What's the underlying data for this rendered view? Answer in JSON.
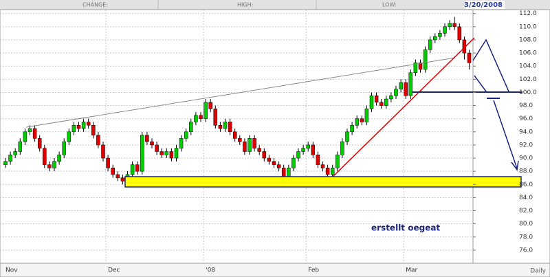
{
  "header": {
    "change": "CHANGE:",
    "high": "HIGH:",
    "low": "LOW:",
    "date": "3/20/2008"
  },
  "footer": {
    "period": "Daily"
  },
  "chart_data": {
    "type": "candlestick",
    "annotations": [
      "erstellt oegeat"
    ],
    "up_color": "#00cc00",
    "down_color": "#e00000",
    "grid": true,
    "categories": [
      "Nov",
      null,
      null,
      null,
      null,
      null,
      null,
      null,
      null,
      null,
      null,
      null,
      null,
      null,
      null,
      null,
      null,
      null,
      null,
      null,
      null,
      "Dec",
      null,
      null,
      null,
      null,
      null,
      null,
      null,
      null,
      null,
      null,
      null,
      null,
      null,
      null,
      null,
      null,
      null,
      null,
      null,
      "'08",
      null,
      null,
      null,
      null,
      null,
      null,
      null,
      null,
      null,
      null,
      null,
      null,
      null,
      null,
      null,
      null,
      null,
      null,
      null,
      null,
      "Feb",
      null,
      null,
      null,
      null,
      null,
      null,
      null,
      null,
      null,
      null,
      null,
      null,
      null,
      null,
      null,
      null,
      null,
      null,
      null,
      "Mar",
      null,
      null,
      null,
      null,
      null,
      null,
      null,
      null,
      null,
      null,
      null,
      null,
      null
    ],
    "open": [
      89,
      89.5,
      90.5,
      91,
      92.5,
      94,
      94.5,
      93,
      91.5,
      89,
      88.5,
      89.5,
      90.5,
      92.5,
      94,
      95,
      94.5,
      95.5,
      95,
      93.5,
      92,
      90,
      88.5,
      87.5,
      87,
      86.5,
      87.5,
      89,
      88,
      93.5,
      92.5,
      92,
      91,
      90.5,
      91,
      90,
      91.5,
      93,
      94,
      95.5,
      96.5,
      96,
      98.5,
      97.5,
      95,
      94.5,
      95.5,
      94,
      93,
      92.5,
      91,
      93,
      91.5,
      91,
      90,
      89.5,
      89,
      88.5,
      86.5,
      88.5,
      90,
      91,
      91.5,
      92,
      90.5,
      89,
      88.5,
      87.5,
      88.5,
      90.5,
      92.5,
      94,
      95,
      96,
      95.5,
      97.5,
      99.5,
      98.5,
      98,
      99,
      99.5,
      100.5,
      101.5,
      99.5,
      103,
      104.5,
      103.5,
      106.5,
      108,
      108.5,
      109,
      110,
      110.5,
      110,
      108,
      106
    ],
    "high": [
      90,
      91,
      91.5,
      93,
      94.5,
      95,
      95,
      93.5,
      92,
      89.5,
      90,
      91,
      93,
      94.5,
      95.5,
      95.5,
      96,
      96,
      95.5,
      94,
      92.5,
      90.5,
      89,
      88,
      87.5,
      88,
      89.5,
      89.5,
      94,
      94,
      93,
      92.5,
      91.5,
      91.5,
      91.5,
      92,
      93.5,
      94.5,
      96,
      97,
      97,
      99,
      99,
      98,
      95.5,
      96,
      96,
      94.5,
      93.5,
      93,
      93.5,
      93.5,
      92,
      91.5,
      90.5,
      90,
      89.5,
      89,
      89,
      90.5,
      91.5,
      92,
      92.5,
      92.5,
      91,
      89.5,
      89,
      89,
      91,
      93,
      94.5,
      95.5,
      96.5,
      96.5,
      98,
      100,
      100,
      99,
      99.5,
      100,
      101,
      102,
      102,
      103.5,
      105,
      105,
      107,
      108.5,
      109,
      109.5,
      110.5,
      111,
      111.5,
      110.5,
      108.5,
      106.5
    ],
    "low": [
      88.5,
      89,
      90,
      90.5,
      92,
      93.5,
      92.5,
      91,
      88.5,
      88,
      88,
      89,
      90,
      92,
      93.5,
      94,
      94,
      94.5,
      93,
      91.5,
      89.5,
      88,
      87,
      86.5,
      86,
      86,
      87,
      87.5,
      87.5,
      92,
      91.5,
      90.5,
      90,
      90,
      89.5,
      89.5,
      91,
      92.5,
      93.5,
      95,
      95.5,
      95.5,
      97,
      94.5,
      94,
      94,
      93.5,
      92.5,
      92,
      90.5,
      90.5,
      91,
      90.5,
      89.5,
      89,
      88.5,
      88,
      86,
      86,
      88,
      89.5,
      90.5,
      91,
      90,
      88.5,
      88,
      87,
      87,
      88,
      90,
      92,
      93.5,
      94.5,
      95,
      95,
      97,
      98,
      97.5,
      97.5,
      98.5,
      99,
      100,
      99,
      99,
      102.5,
      103,
      103,
      106,
      107.5,
      108,
      108.5,
      109.5,
      109.5,
      107.5,
      105,
      103.5
    ],
    "close": [
      89.5,
      90.5,
      91,
      92.5,
      94,
      94.5,
      93,
      91.5,
      89,
      88.5,
      89.5,
      90.5,
      92.5,
      94,
      95,
      94.5,
      95.5,
      95,
      93.5,
      92,
      90,
      88.5,
      87.5,
      87,
      86.5,
      87.5,
      89,
      88,
      93.5,
      92.5,
      92,
      91,
      90.5,
      91,
      90,
      91.5,
      93,
      94,
      95.5,
      96.5,
      96,
      98.5,
      97.5,
      95,
      94.5,
      95.5,
      94,
      93,
      92.5,
      91,
      93,
      91.5,
      91,
      90,
      89.5,
      89,
      88.5,
      86.5,
      88.5,
      90,
      91,
      91.5,
      92,
      90.5,
      89,
      88.5,
      87.5,
      88.5,
      90.5,
      92.5,
      94,
      95,
      96,
      95.5,
      97.5,
      99.5,
      98.5,
      98,
      99,
      99.5,
      100.5,
      101.5,
      99.5,
      103,
      104.5,
      103.5,
      106.5,
      108,
      108.5,
      109,
      110,
      110.5,
      110,
      108,
      106,
      104.5
    ],
    "ylim": [
      74,
      112.6
    ],
    "yticks": [
      {
        "value": 112,
        "label": "112.0"
      },
      {
        "value": 110,
        "label": "110.0"
      },
      {
        "value": 108,
        "label": "108.0"
      },
      {
        "value": 106,
        "label": "106.0"
      },
      {
        "value": 104,
        "label": "104.0"
      },
      {
        "value": 102,
        "label": "102.0"
      },
      {
        "value": 100,
        "label": "100.0"
      },
      {
        "value": 98,
        "label": "98.0"
      },
      {
        "value": 96,
        "label": "96.0"
      },
      {
        "value": 94,
        "label": "94.0"
      },
      {
        "value": 92,
        "label": "92.0"
      },
      {
        "value": 90,
        "label": "90.0"
      },
      {
        "value": 88,
        "label": "88.0"
      },
      {
        "value": 86,
        "label": "86.0"
      },
      {
        "value": 84,
        "label": "84.0"
      },
      {
        "value": 82,
        "label": "82.0"
      },
      {
        "value": 80,
        "label": "80.0"
      },
      {
        "value": 78,
        "label": "78.0"
      },
      {
        "value": 76,
        "label": "76.0"
      }
    ]
  }
}
